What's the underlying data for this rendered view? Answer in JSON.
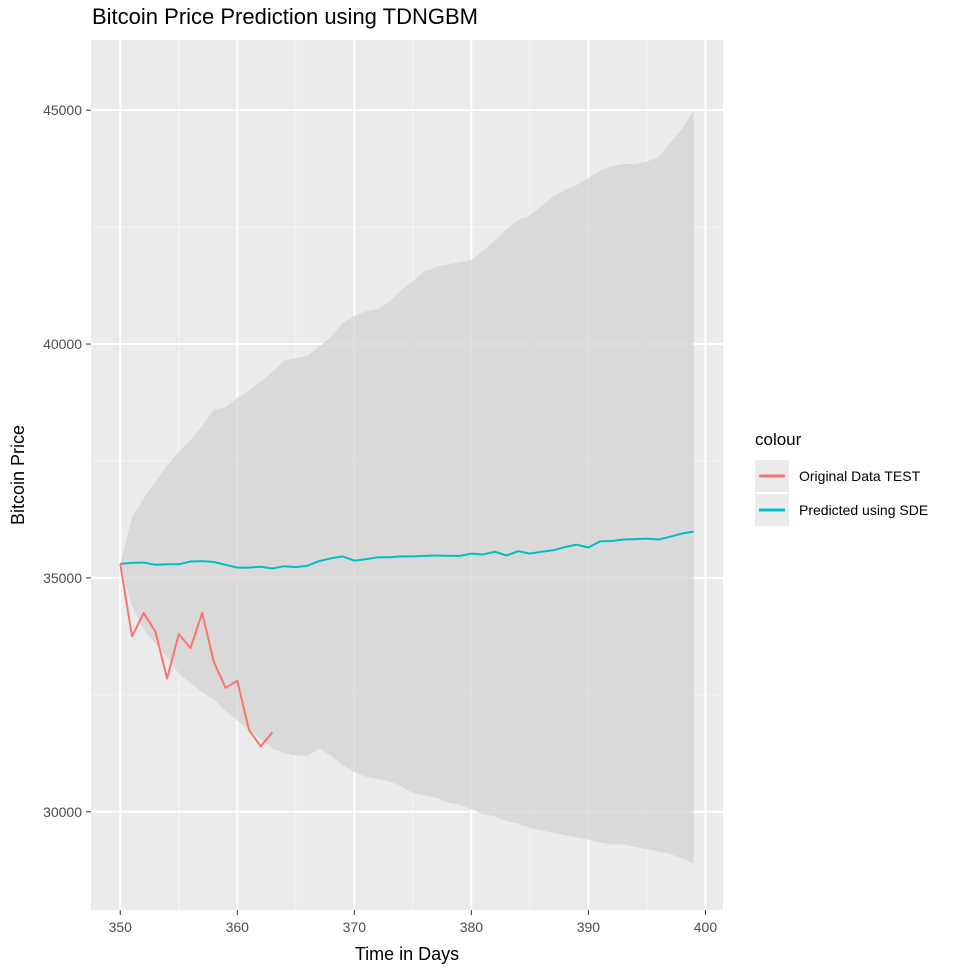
{
  "chart_data": {
    "type": "line",
    "title": "Bitcoin Price Prediction using TDNGBM",
    "xlabel": "Time in Days",
    "ylabel": "Bitcoin Price",
    "xlim": [
      347.5,
      401.5
    ],
    "ylim": [
      27900,
      46500
    ],
    "x_ticks": [
      350,
      360,
      370,
      380,
      390,
      400
    ],
    "y_ticks": [
      30000,
      35000,
      40000,
      45000
    ],
    "grid": true,
    "legend": {
      "title": "colour",
      "position": "right",
      "entries": [
        {
          "label": "Original Data TEST",
          "color": "#F8766D"
        },
        {
          "label": "Predicted using SDE",
          "color": "#00BFC4"
        }
      ]
    },
    "series": [
      {
        "name": "Original Data TEST",
        "color": "#F8766D",
        "x": [
          350,
          351,
          352,
          353,
          354,
          355,
          356,
          357,
          358,
          359,
          360,
          361,
          362,
          363
        ],
        "y": [
          35300,
          33750,
          34250,
          33850,
          32850,
          33800,
          33500,
          34250,
          33200,
          32650,
          32800,
          31750,
          31400,
          31700
        ]
      },
      {
        "name": "Predicted using SDE",
        "color": "#00BFC4",
        "x": [
          350,
          351,
          352,
          353,
          354,
          355,
          356,
          357,
          358,
          359,
          360,
          361,
          362,
          363,
          364,
          365,
          366,
          367,
          368,
          369,
          370,
          371,
          372,
          373,
          374,
          375,
          376,
          377,
          378,
          379,
          380,
          381,
          382,
          383,
          384,
          385,
          386,
          387,
          388,
          389,
          390,
          391,
          392,
          393,
          394,
          395,
          396,
          397,
          398,
          399
        ],
        "y": [
          35300,
          35320,
          35330,
          35280,
          35290,
          35290,
          35350,
          35360,
          35340,
          35280,
          35220,
          35220,
          35240,
          35200,
          35250,
          35230,
          35260,
          35360,
          35420,
          35460,
          35370,
          35400,
          35440,
          35440,
          35460,
          35460,
          35470,
          35480,
          35470,
          35470,
          35520,
          35500,
          35560,
          35480,
          35570,
          35520,
          35560,
          35590,
          35660,
          35710,
          35650,
          35780,
          35790,
          35820,
          35830,
          35840,
          35820,
          35880,
          35950,
          35990
        ]
      }
    ],
    "ribbon": {
      "color": "#d3d3d3",
      "x": [
        350,
        351,
        352,
        353,
        354,
        355,
        356,
        357,
        358,
        359,
        360,
        361,
        362,
        363,
        364,
        365,
        366,
        367,
        368,
        369,
        370,
        371,
        372,
        373,
        374,
        375,
        376,
        377,
        378,
        379,
        380,
        381,
        382,
        383,
        384,
        385,
        386,
        387,
        388,
        389,
        390,
        391,
        392,
        393,
        394,
        395,
        396,
        397,
        398,
        399
      ],
      "upper": [
        35300,
        36300,
        36700,
        37050,
        37400,
        37700,
        37950,
        38250,
        38600,
        38650,
        38850,
        39000,
        39200,
        39400,
        39650,
        39700,
        39750,
        39950,
        40150,
        40450,
        40600,
        40700,
        40750,
        40900,
        41150,
        41350,
        41550,
        41650,
        41700,
        41750,
        41800,
        42000,
        42200,
        42450,
        42650,
        42750,
        42950,
        43150,
        43300,
        43400,
        43550,
        43700,
        43800,
        43850,
        43850,
        43900,
        44000,
        44300,
        44600,
        45000
      ],
      "lower": [
        35300,
        34400,
        33900,
        33600,
        33300,
        32950,
        32750,
        32550,
        32400,
        32150,
        31950,
        31750,
        31550,
        31350,
        31250,
        31200,
        31200,
        31350,
        31200,
        31000,
        30850,
        30750,
        30700,
        30650,
        30550,
        30400,
        30350,
        30300,
        30200,
        30150,
        30050,
        29950,
        29900,
        29800,
        29750,
        29650,
        29600,
        29550,
        29500,
        29450,
        29400,
        29350,
        29300,
        29300,
        29250,
        29200,
        29150,
        29100,
        29000,
        28900
      ]
    }
  }
}
